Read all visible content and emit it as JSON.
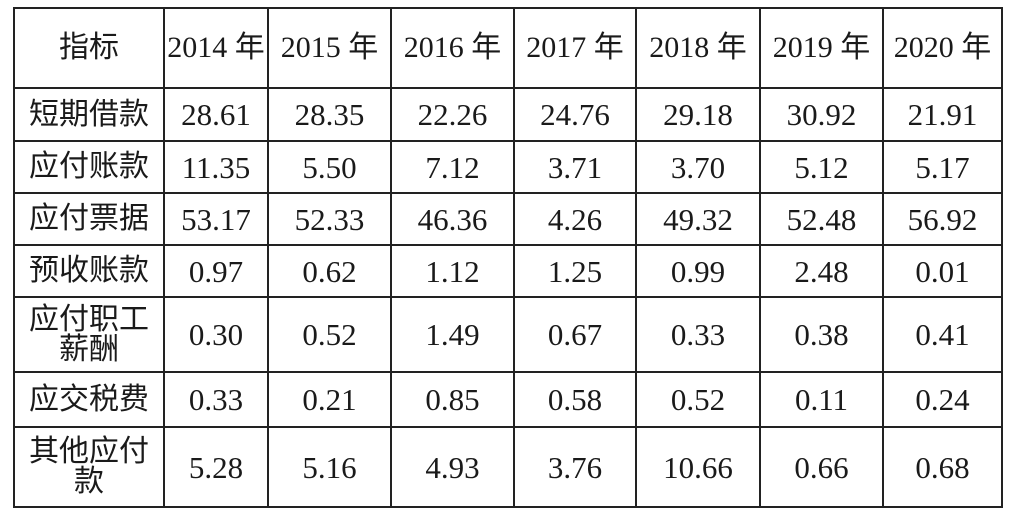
{
  "table": {
    "columns": [
      "指标",
      "2014 年",
      "2015 年",
      "2016 年",
      "2017 年",
      "2018 年",
      "2019 年",
      "2020 年"
    ],
    "rows": [
      {
        "label": "短期借款",
        "values": [
          "28.61",
          "28.35",
          "22.26",
          "24.76",
          "29.18",
          "30.92",
          "21.91"
        ]
      },
      {
        "label": "应付账款",
        "values": [
          "11.35",
          "5.50",
          "7.12",
          "3.71",
          "3.70",
          "5.12",
          "5.17"
        ]
      },
      {
        "label": "应付票据",
        "values": [
          "53.17",
          "52.33",
          "46.36",
          "4.26",
          "49.32",
          "52.48",
          "56.92"
        ]
      },
      {
        "label": "预收账款",
        "values": [
          "0.97",
          "0.62",
          "1.12",
          "1.25",
          "0.99",
          "2.48",
          "0.01"
        ]
      },
      {
        "label": "应付职工薪酬",
        "values": [
          "0.30",
          "0.52",
          "1.49",
          "0.67",
          "0.33",
          "0.38",
          "0.41"
        ]
      },
      {
        "label": "应交税费",
        "values": [
          "0.33",
          "0.21",
          "0.85",
          "0.58",
          "0.52",
          "0.11",
          "0.24"
        ]
      },
      {
        "label": "其他应付款",
        "values": [
          "5.28",
          "5.16",
          "4.93",
          "3.76",
          "10.66",
          "0.66",
          "0.68"
        ]
      }
    ]
  }
}
